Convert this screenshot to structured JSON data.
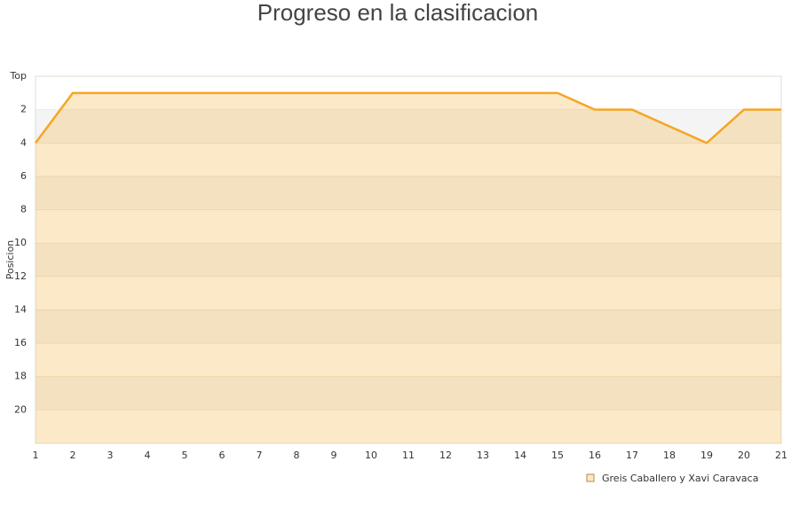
{
  "chart_data": {
    "type": "line",
    "title": "Progreso en la clasificacion",
    "y_label": "Posicion",
    "x": [
      1,
      2,
      3,
      4,
      5,
      6,
      7,
      8,
      9,
      10,
      11,
      12,
      13,
      14,
      15,
      16,
      17,
      18,
      19,
      20,
      21
    ],
    "xlim": [
      1,
      21
    ],
    "xticks": [
      1,
      2,
      3,
      4,
      5,
      6,
      7,
      8,
      9,
      10,
      11,
      12,
      13,
      14,
      15,
      16,
      17,
      18,
      19,
      20,
      21
    ],
    "ylim": [
      0,
      22
    ],
    "y_reversed": true,
    "yticks": [
      {
        "value": 0,
        "label": "Top"
      },
      2,
      4,
      6,
      8,
      10,
      12,
      14,
      16,
      18,
      20
    ],
    "grid": true,
    "series": [
      {
        "name": "Greis Caballero y Xavi Caravaca",
        "color": "#f5a623",
        "values": [
          4,
          1,
          1,
          1,
          1,
          1,
          1,
          1,
          1,
          1,
          1,
          1,
          1,
          1,
          1,
          2,
          2,
          3,
          4,
          2,
          2
        ]
      }
    ]
  }
}
